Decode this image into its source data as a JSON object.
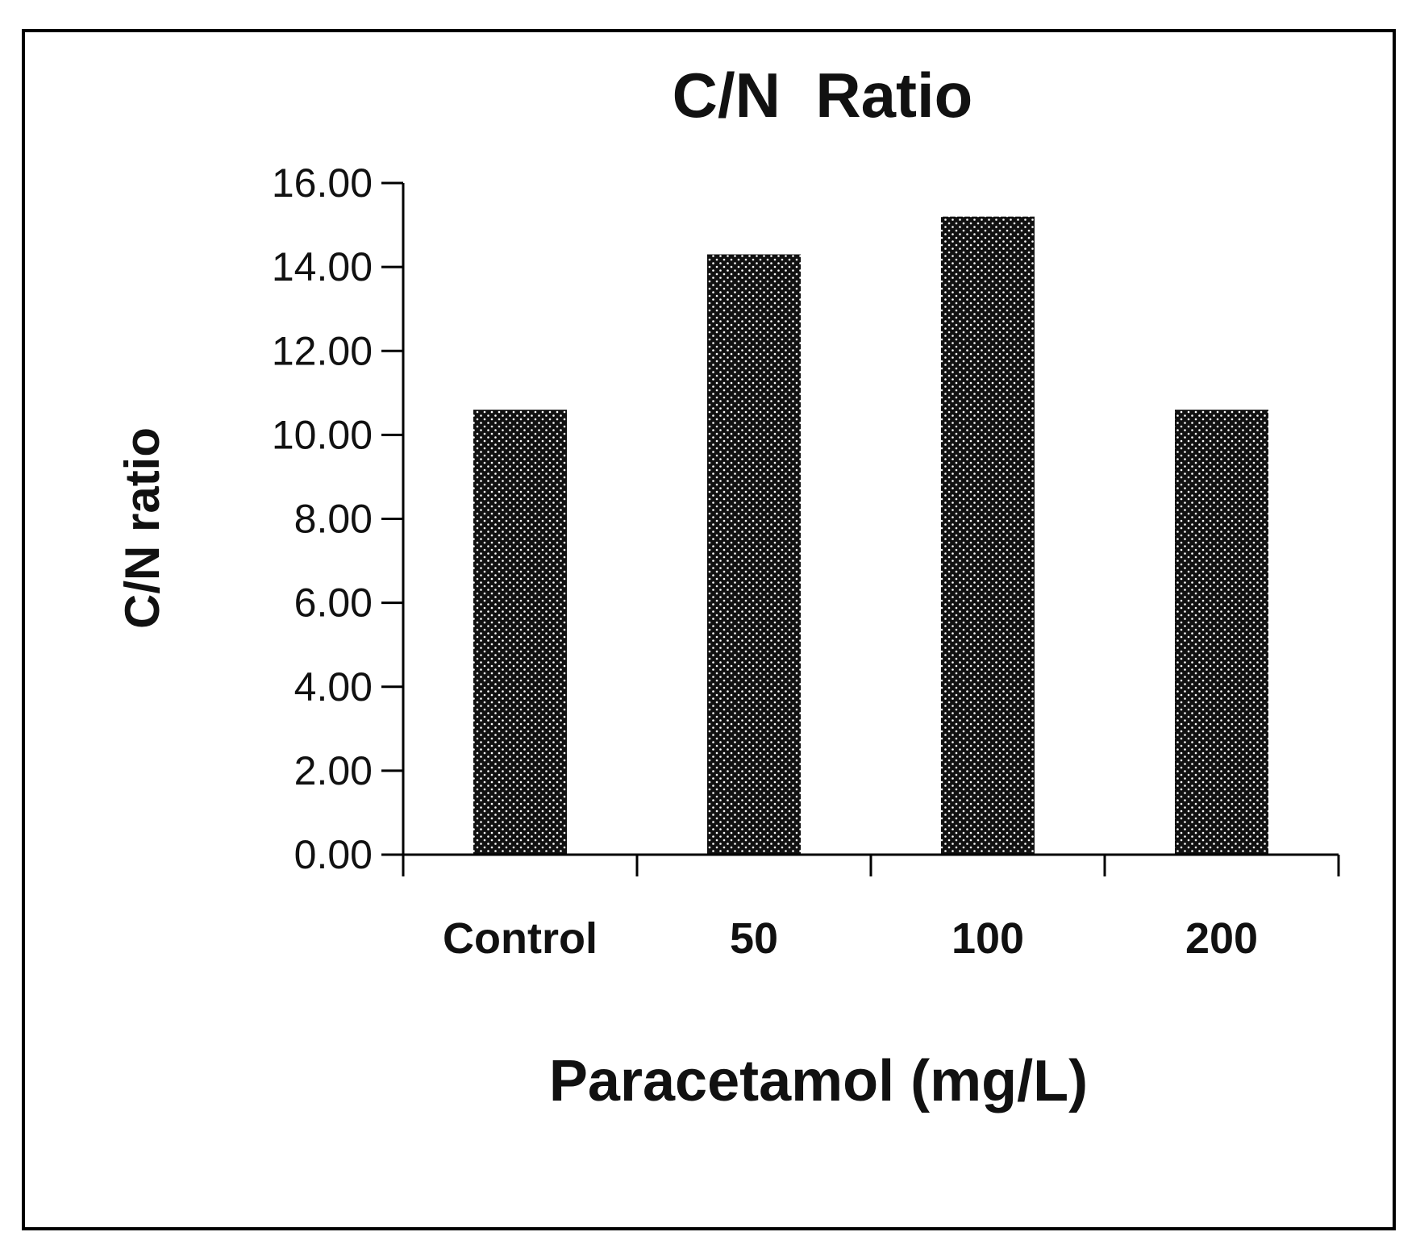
{
  "chart_data": {
    "type": "bar",
    "title": "C/N  Ratio",
    "xlabel": "Paracetamol (mg/L)",
    "ylabel": "C/N ratio",
    "categories": [
      "Control",
      "50",
      "100",
      "200"
    ],
    "values": [
      10.6,
      14.3,
      15.2,
      10.6
    ],
    "ylim": [
      0,
      16
    ],
    "ytick_labels": [
      "0.00",
      "2.00",
      "4.00",
      "6.00",
      "8.00",
      "10.00",
      "12.00",
      "14.00",
      "16.00"
    ],
    "grid": false,
    "legend": "none",
    "bar_fill": "dotted"
  },
  "colors": {
    "bar": "#111111",
    "dots": "#ffffff",
    "axis": "#000000",
    "frame": "#000000",
    "background": "#ffffff"
  }
}
